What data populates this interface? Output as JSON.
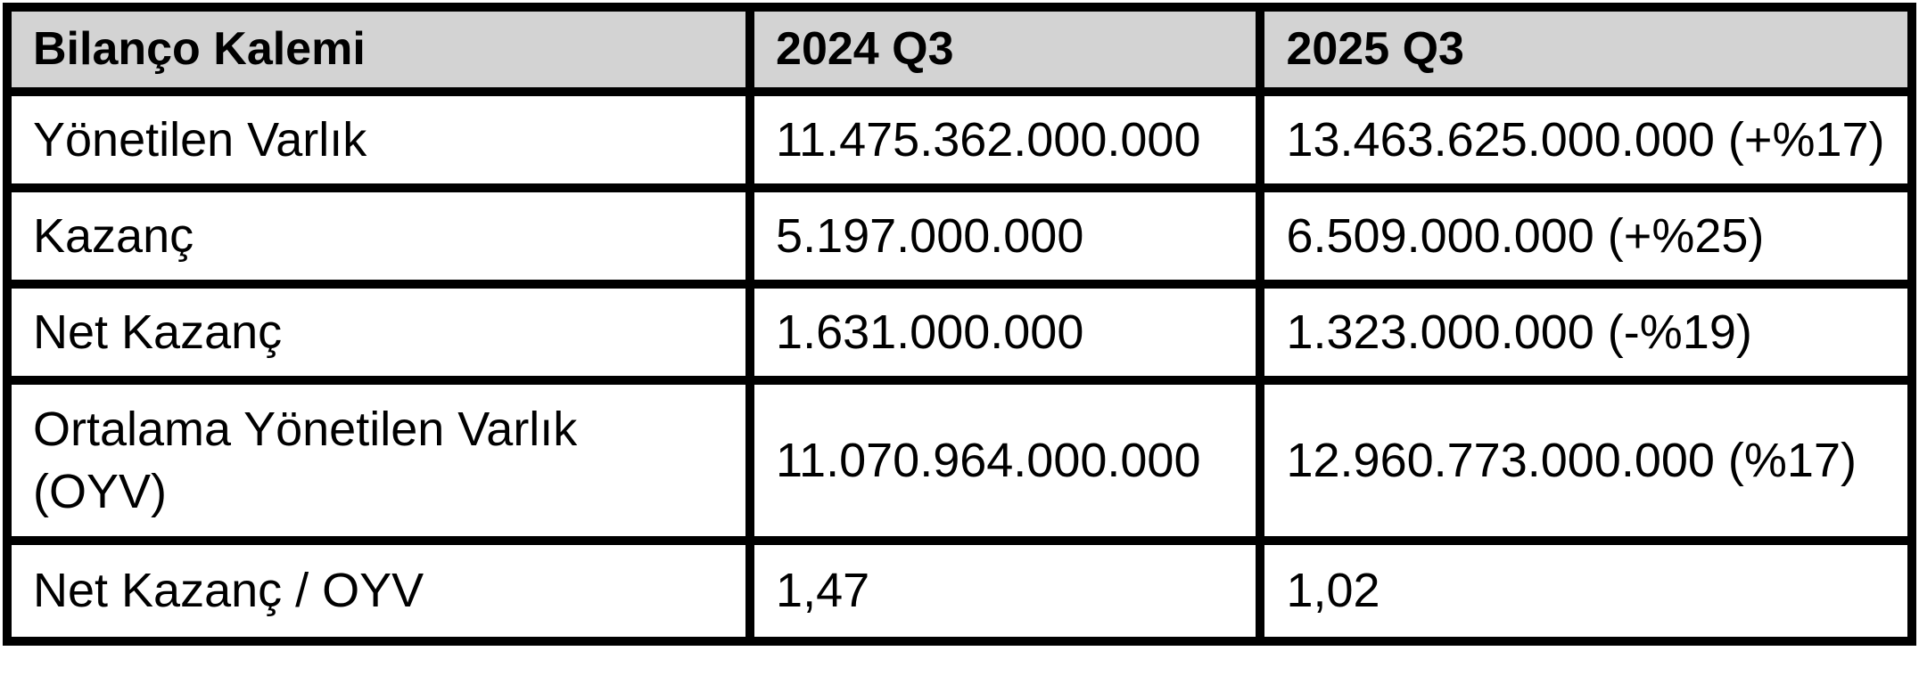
{
  "chart_data": {
    "type": "table",
    "columns": [
      "Bilanço Kalemi",
      "2024 Q3",
      "2025 Q3"
    ],
    "rows": [
      [
        "Yönetilen Varlık",
        "11.475.362.000.000",
        "13.463.625.000.000 (+%17)"
      ],
      [
        "Kazanç",
        "5.197.000.000",
        "6.509.000.000 (+%25)"
      ],
      [
        "Net Kazanç",
        "1.631.000.000",
        "1.323.000.000 (-%19)"
      ],
      [
        "Ortalama Yönetilen Varlık (OYV)",
        "11.070.964.000.000",
        "12.960.773.000.000 (%17)"
      ],
      [
        "Net Kazanç / OYV",
        "1,47",
        "1,02"
      ]
    ],
    "layout_hints": {
      "header_background": "#d3d3d3",
      "border_color": "#000000",
      "text_color": "#000000",
      "row_background": "#ffffff",
      "grid": true
    }
  }
}
